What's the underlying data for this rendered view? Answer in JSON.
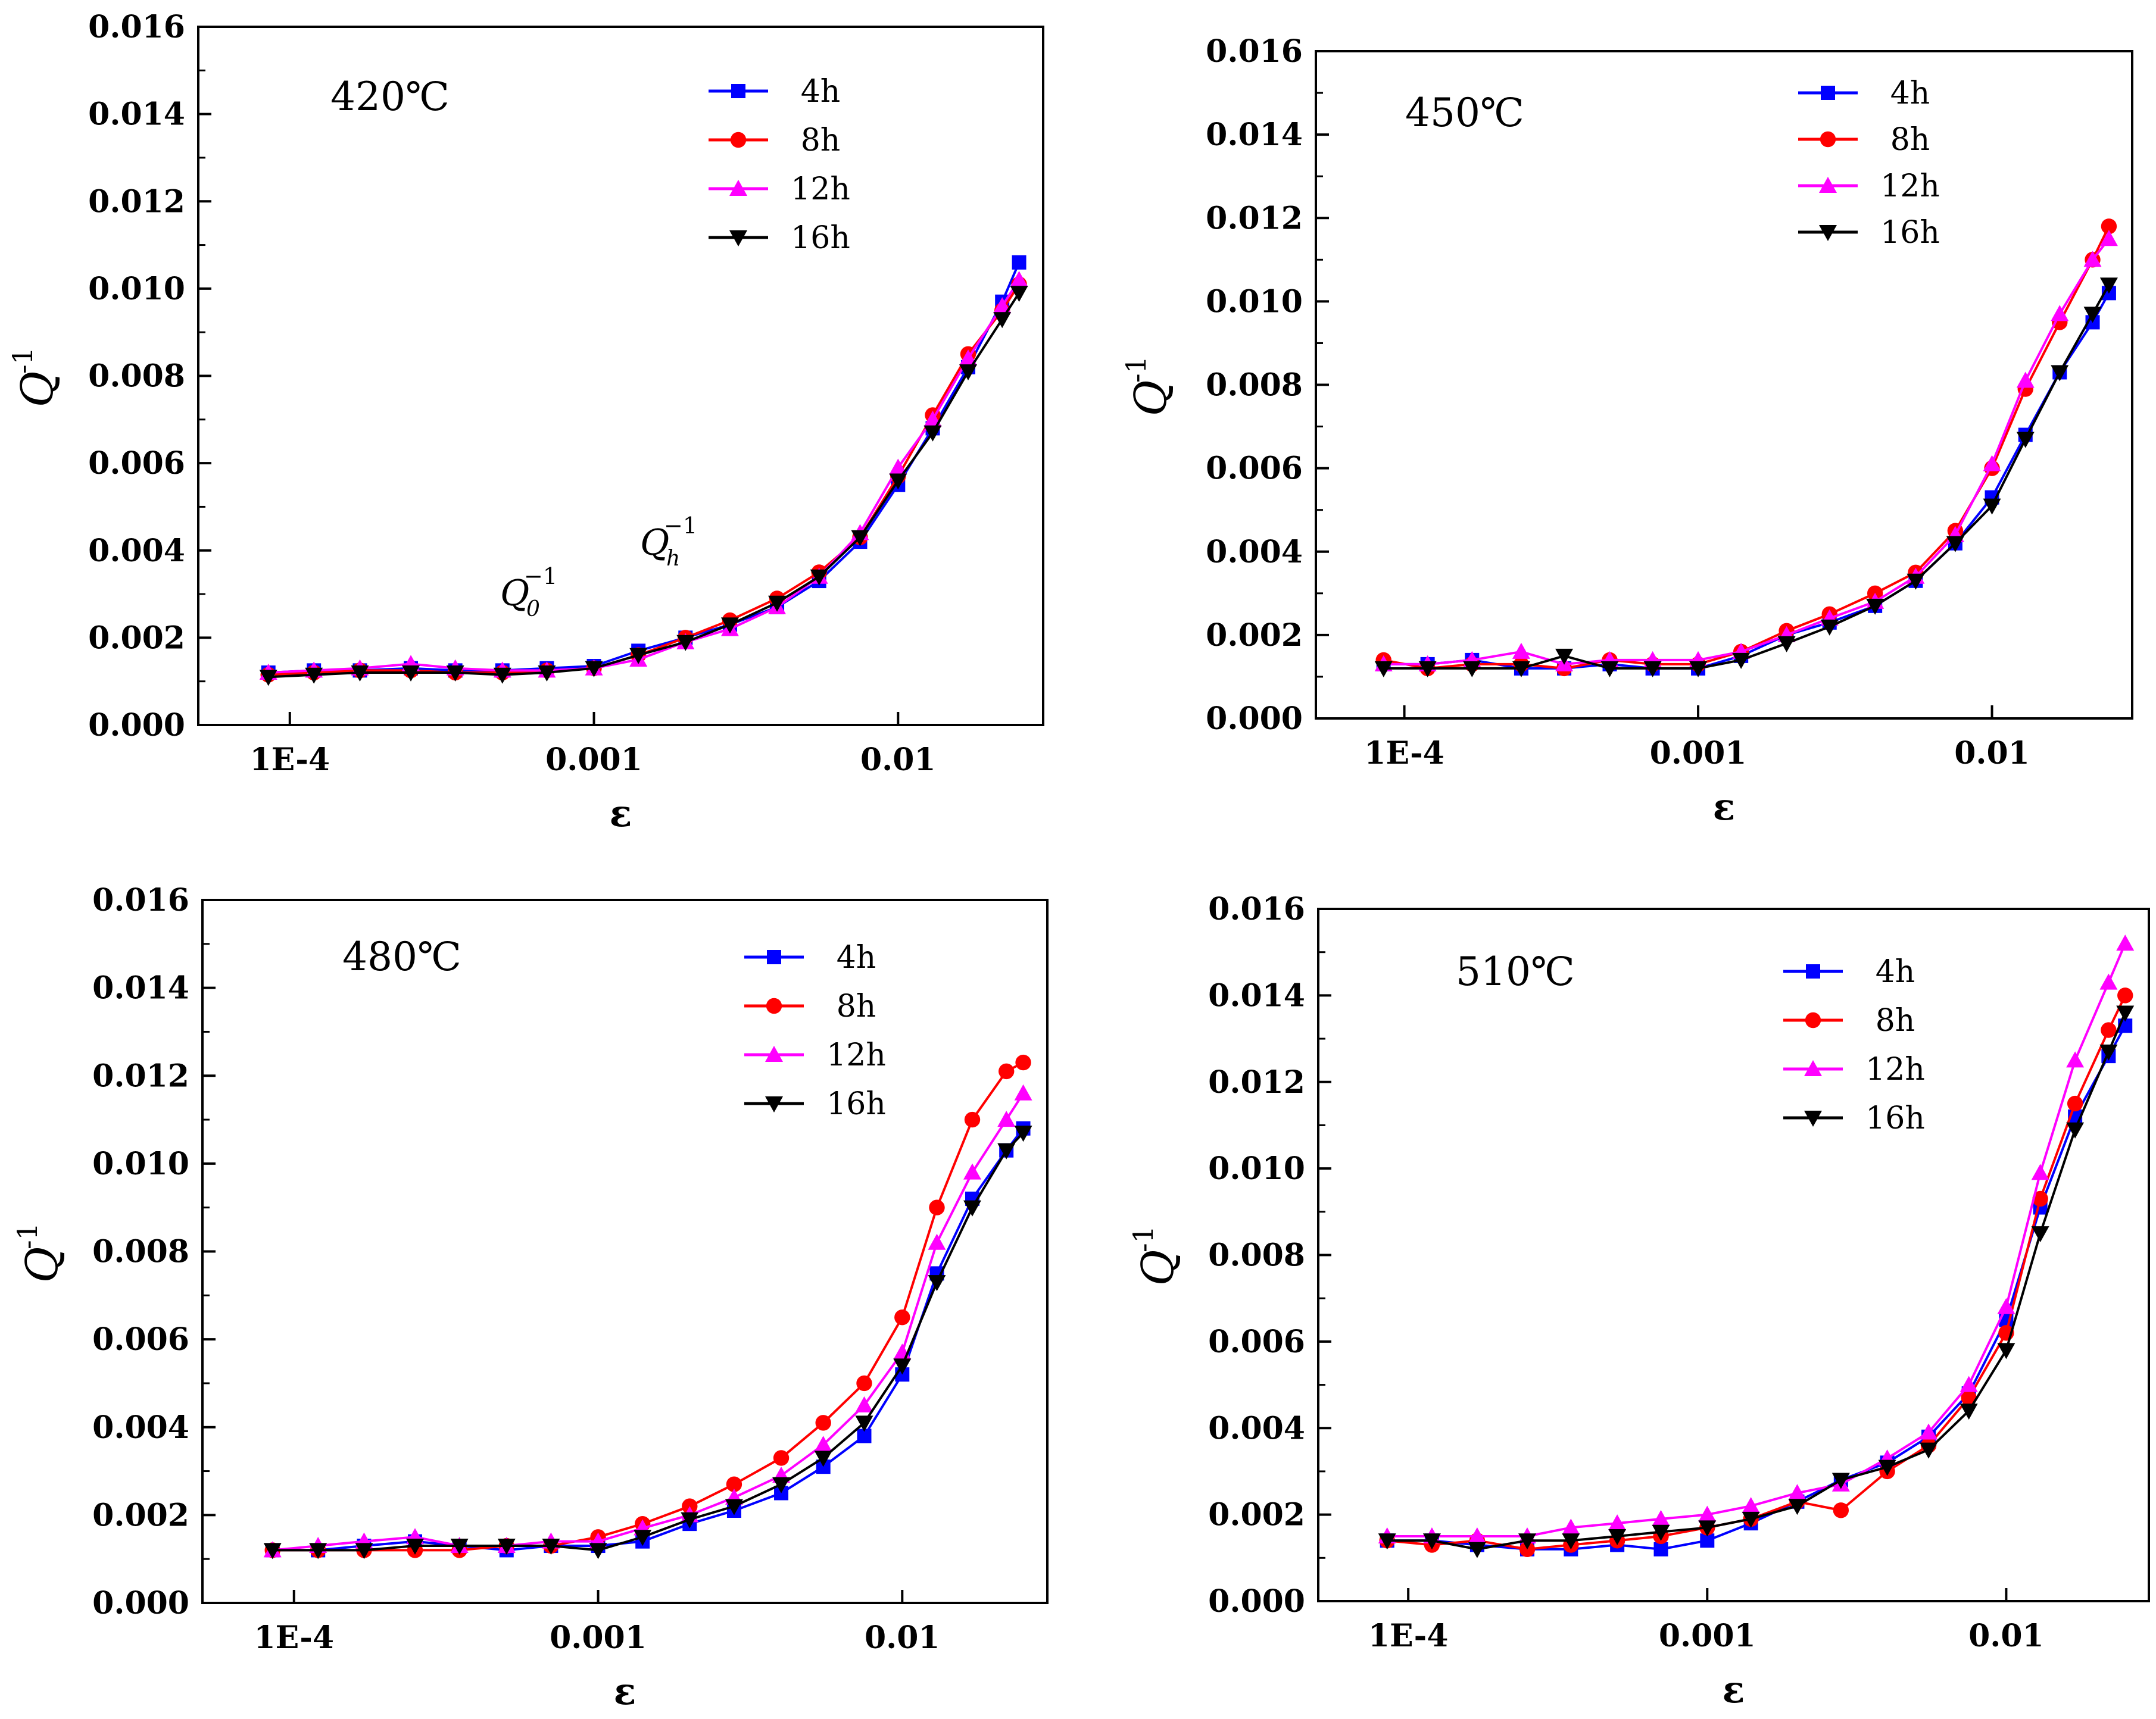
{
  "series_meta": [
    {
      "name": "4h",
      "color": "#0000ff",
      "marker": "square"
    },
    {
      "name": "8h",
      "color": "#ff0000",
      "marker": "circle"
    },
    {
      "name": "12h",
      "color": "#ff00ff",
      "marker": "triangle-up"
    },
    {
      "name": "16h",
      "color": "#000000",
      "marker": "triangle-down"
    }
  ],
  "chart_data": [
    {
      "type": "line",
      "title": "420℃",
      "xlabel": "ε",
      "ylabel": "Q",
      "ylabel_sup": "-1",
      "x_scale": "log",
      "xlim": [
        5e-05,
        0.03
      ],
      "ylim": [
        0,
        0.016
      ],
      "x_ticks": [
        0.0001,
        0.001,
        0.01
      ],
      "x_tick_labels": [
        "1E-4",
        "0.001",
        "0.01"
      ],
      "y_ticks": [
        0,
        0.002,
        0.004,
        0.006,
        0.008,
        0.01,
        0.012,
        0.014,
        0.016
      ],
      "y_tick_labels": [
        "0.000",
        "0.002",
        "0.004",
        "0.006",
        "0.008",
        "0.010",
        "0.012",
        "0.014",
        "0.016"
      ],
      "legend": "top-right",
      "annotations": [
        {
          "text": "Q",
          "sub": "0",
          "sup": "−1",
          "x": 0.00045,
          "y": 0.0025
        },
        {
          "text": "Q",
          "sub": "h",
          "sup": "−1",
          "x": 0.0013,
          "y": 0.0037
        }
      ],
      "x": [
        8.5e-05,
        0.00012,
        0.00017,
        0.00025,
        0.00035,
        0.0005,
        0.0007,
        0.001,
        0.0014,
        0.002,
        0.0028,
        0.004,
        0.0055,
        0.0075,
        0.01,
        0.013,
        0.017,
        0.022,
        0.025
      ],
      "series": [
        {
          "name": "4h",
          "values": [
            0.0012,
            0.00125,
            0.00125,
            0.0013,
            0.00125,
            0.00125,
            0.0013,
            0.00135,
            0.0017,
            0.002,
            0.0023,
            0.0027,
            0.0033,
            0.0042,
            0.0055,
            0.0068,
            0.0082,
            0.0097,
            0.0106
          ]
        },
        {
          "name": "8h",
          "values": [
            0.00115,
            0.0012,
            0.00125,
            0.00125,
            0.0012,
            0.0012,
            0.00125,
            0.0013,
            0.0016,
            0.002,
            0.0024,
            0.0029,
            0.0035,
            0.0043,
            0.0057,
            0.0071,
            0.0085,
            0.0095,
            0.0101
          ]
        },
        {
          "name": "12h",
          "values": [
            0.0012,
            0.00125,
            0.0013,
            0.0014,
            0.0013,
            0.00125,
            0.00125,
            0.0013,
            0.0015,
            0.0019,
            0.0022,
            0.0027,
            0.0034,
            0.0044,
            0.0059,
            0.007,
            0.0084,
            0.0096,
            0.0102
          ]
        },
        {
          "name": "16h",
          "values": [
            0.0011,
            0.00115,
            0.0012,
            0.0012,
            0.0012,
            0.00115,
            0.0012,
            0.0013,
            0.0016,
            0.0019,
            0.0023,
            0.0028,
            0.0034,
            0.0043,
            0.0056,
            0.0067,
            0.0081,
            0.0093,
            0.0099
          ]
        }
      ]
    },
    {
      "type": "line",
      "title": "450℃",
      "xlabel": "ε",
      "ylabel": "Q",
      "ylabel_sup": "-1",
      "x_scale": "log",
      "xlim": [
        5e-05,
        0.03
      ],
      "ylim": [
        0,
        0.016
      ],
      "x_ticks": [
        0.0001,
        0.001,
        0.01
      ],
      "x_tick_labels": [
        "1E-4",
        "0.001",
        "0.01"
      ],
      "y_ticks": [
        0,
        0.002,
        0.004,
        0.006,
        0.008,
        0.01,
        0.012,
        0.014,
        0.016
      ],
      "y_tick_labels": [
        "0.000",
        "0.002",
        "0.004",
        "0.006",
        "0.008",
        "0.010",
        "0.012",
        "0.014",
        "0.016"
      ],
      "legend": "top-right",
      "annotations": [],
      "x": [
        8.5e-05,
        0.00012,
        0.00017,
        0.00025,
        0.00035,
        0.0005,
        0.0007,
        0.001,
        0.0014,
        0.002,
        0.0028,
        0.004,
        0.0055,
        0.0075,
        0.01,
        0.013,
        0.017,
        0.022,
        0.025
      ],
      "series": [
        {
          "name": "4h",
          "values": [
            0.0013,
            0.0013,
            0.0014,
            0.0012,
            0.0012,
            0.0013,
            0.0012,
            0.0012,
            0.0015,
            0.002,
            0.0023,
            0.0027,
            0.0033,
            0.0042,
            0.0053,
            0.0068,
            0.0083,
            0.0095,
            0.0102
          ]
        },
        {
          "name": "8h",
          "values": [
            0.0014,
            0.0012,
            0.0013,
            0.0013,
            0.0012,
            0.0014,
            0.0013,
            0.0013,
            0.0016,
            0.0021,
            0.0025,
            0.003,
            0.0035,
            0.0045,
            0.006,
            0.0079,
            0.0095,
            0.011,
            0.0118
          ]
        },
        {
          "name": "12h",
          "values": [
            0.0013,
            0.0013,
            0.0014,
            0.0016,
            0.0013,
            0.0014,
            0.0014,
            0.0014,
            0.0016,
            0.002,
            0.0024,
            0.0028,
            0.0034,
            0.0044,
            0.0061,
            0.0081,
            0.0097,
            0.011,
            0.0115
          ]
        },
        {
          "name": "16h",
          "values": [
            0.0012,
            0.0012,
            0.0012,
            0.0012,
            0.0015,
            0.0012,
            0.0012,
            0.0012,
            0.0014,
            0.0018,
            0.0022,
            0.0027,
            0.0033,
            0.0042,
            0.0051,
            0.0067,
            0.0083,
            0.0097,
            0.0104
          ]
        }
      ]
    },
    {
      "type": "line",
      "title": "480℃",
      "xlabel": "ε",
      "ylabel": "Q",
      "ylabel_sup": "-1",
      "x_scale": "log",
      "xlim": [
        5e-05,
        0.03
      ],
      "ylim": [
        0,
        0.016
      ],
      "x_ticks": [
        0.0001,
        0.001,
        0.01
      ],
      "x_tick_labels": [
        "1E-4",
        "0.001",
        "0.01"
      ],
      "y_ticks": [
        0,
        0.002,
        0.004,
        0.006,
        0.008,
        0.01,
        0.012,
        0.014,
        0.016
      ],
      "y_tick_labels": [
        "0.000",
        "0.002",
        "0.004",
        "0.006",
        "0.008",
        "0.010",
        "0.012",
        "0.014",
        "0.016"
      ],
      "legend": "top-right",
      "annotations": [],
      "x": [
        8.5e-05,
        0.00012,
        0.00017,
        0.00025,
        0.00035,
        0.0005,
        0.0007,
        0.001,
        0.0014,
        0.002,
        0.0028,
        0.004,
        0.0055,
        0.0075,
        0.01,
        0.013,
        0.017,
        0.022,
        0.025
      ],
      "series": [
        {
          "name": "4h",
          "values": [
            0.0012,
            0.0012,
            0.0013,
            0.0014,
            0.0013,
            0.0012,
            0.0013,
            0.0013,
            0.0014,
            0.0018,
            0.0021,
            0.0025,
            0.0031,
            0.0038,
            0.0052,
            0.0075,
            0.0092,
            0.0103,
            0.0108
          ]
        },
        {
          "name": "8h",
          "values": [
            0.0012,
            0.0012,
            0.0012,
            0.0012,
            0.0012,
            0.0013,
            0.0013,
            0.0015,
            0.0018,
            0.0022,
            0.0027,
            0.0033,
            0.0041,
            0.005,
            0.0065,
            0.009,
            0.011,
            0.0121,
            0.0123
          ]
        },
        {
          "name": "12h",
          "values": [
            0.0012,
            0.0013,
            0.0014,
            0.0015,
            0.0013,
            0.0013,
            0.0014,
            0.0014,
            0.0017,
            0.002,
            0.0024,
            0.0029,
            0.0036,
            0.0045,
            0.0057,
            0.0082,
            0.0098,
            0.011,
            0.0116
          ]
        },
        {
          "name": "16h",
          "values": [
            0.0012,
            0.0012,
            0.0012,
            0.0013,
            0.0013,
            0.0013,
            0.0013,
            0.0012,
            0.0015,
            0.0019,
            0.0022,
            0.0027,
            0.0033,
            0.0041,
            0.0054,
            0.0073,
            0.009,
            0.0103,
            0.0107
          ]
        }
      ]
    },
    {
      "type": "line",
      "title": "510℃",
      "xlabel": "ε",
      "ylabel": "Q",
      "ylabel_sup": "-1",
      "x_scale": "log",
      "xlim": [
        5e-05,
        0.03
      ],
      "ylim": [
        0,
        0.016
      ],
      "x_ticks": [
        0.0001,
        0.001,
        0.01
      ],
      "x_tick_labels": [
        "1E-4",
        "0.001",
        "0.01"
      ],
      "y_ticks": [
        0,
        0.002,
        0.004,
        0.006,
        0.008,
        0.01,
        0.012,
        0.014,
        0.016
      ],
      "y_tick_labels": [
        "0.000",
        "0.002",
        "0.004",
        "0.006",
        "0.008",
        "0.010",
        "0.012",
        "0.014",
        "0.016"
      ],
      "legend": "top-right",
      "annotations": [],
      "x": [
        8.5e-05,
        0.00012,
        0.00017,
        0.00025,
        0.00035,
        0.0005,
        0.0007,
        0.001,
        0.0014,
        0.002,
        0.0028,
        0.004,
        0.0055,
        0.0075,
        0.01,
        0.013,
        0.017,
        0.022,
        0.025
      ],
      "series": [
        {
          "name": "4h",
          "values": [
            0.0014,
            0.0014,
            0.0013,
            0.0012,
            0.0012,
            0.0013,
            0.0012,
            0.0014,
            0.0018,
            0.0023,
            0.0028,
            0.0032,
            0.0038,
            0.0048,
            0.0065,
            0.0091,
            0.0112,
            0.0126,
            0.0133
          ]
        },
        {
          "name": "8h",
          "values": [
            0.0014,
            0.0013,
            0.0014,
            0.0012,
            0.0013,
            0.0014,
            0.0015,
            0.0017,
            0.0019,
            0.0023,
            0.0021,
            0.003,
            0.0036,
            0.0047,
            0.0062,
            0.0093,
            0.0115,
            0.0132,
            0.014
          ]
        },
        {
          "name": "12h",
          "values": [
            0.0015,
            0.0015,
            0.0015,
            0.0015,
            0.0017,
            0.0018,
            0.0019,
            0.002,
            0.0022,
            0.0025,
            0.0027,
            0.0033,
            0.0039,
            0.005,
            0.0068,
            0.0099,
            0.0125,
            0.0143,
            0.0152
          ]
        },
        {
          "name": "16h",
          "values": [
            0.0014,
            0.0014,
            0.0012,
            0.0014,
            0.0014,
            0.0015,
            0.0016,
            0.0017,
            0.0019,
            0.0022,
            0.0028,
            0.0031,
            0.0035,
            0.0044,
            0.0058,
            0.0085,
            0.0109,
            0.0127,
            0.0136
          ]
        }
      ]
    }
  ]
}
